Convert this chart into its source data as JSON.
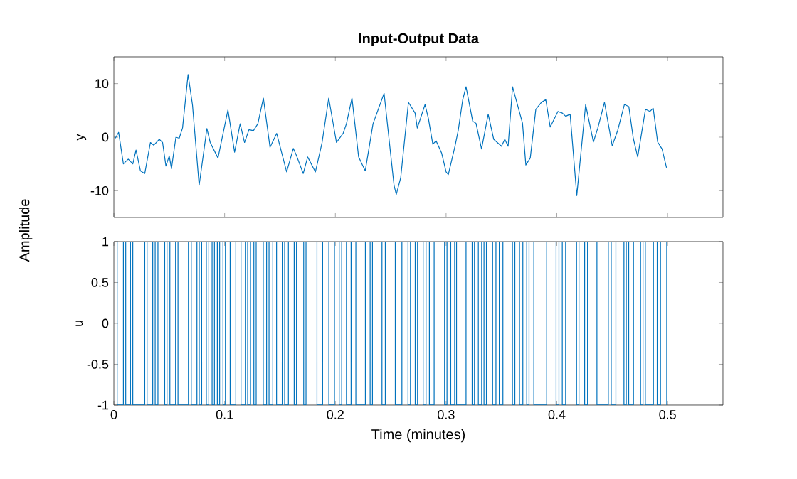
{
  "chart_data": [
    {
      "type": "line",
      "title": "Input-Output Data",
      "ylabel": "y",
      "xlim": [
        0,
        0.55
      ],
      "ylim": [
        -15,
        15
      ],
      "xticks": [
        0,
        0.1,
        0.2,
        0.3,
        0.4,
        0.5
      ],
      "yticks": [
        -10,
        0,
        10
      ],
      "tick_labels": "y",
      "grid": false,
      "marker": "none",
      "line_style": "solid",
      "series": [
        {
          "color": "#0072bd",
          "x": [
            0.0013,
            0.0043,
            0.0086,
            0.013,
            0.0171,
            0.02,
            0.024,
            0.0279,
            0.033,
            0.036,
            0.041,
            0.044,
            0.047,
            0.05,
            0.052,
            0.056,
            0.059,
            0.062,
            0.067,
            0.071,
            0.077,
            0.084,
            0.087,
            0.094,
            0.103,
            0.109,
            0.114,
            0.118,
            0.122,
            0.126,
            0.13,
            0.135,
            0.141,
            0.147,
            0.156,
            0.162,
            0.165,
            0.171,
            0.175,
            0.182,
            0.188,
            0.194,
            0.201,
            0.207,
            0.21,
            0.215,
            0.221,
            0.227,
            0.234,
            0.244,
            0.253,
            0.255,
            0.259,
            0.266,
            0.272,
            0.274,
            0.281,
            0.284,
            0.288,
            0.291,
            0.296,
            0.3,
            0.302,
            0.308,
            0.311,
            0.315,
            0.318,
            0.324,
            0.327,
            0.332,
            0.338,
            0.343,
            0.35,
            0.353,
            0.356,
            0.36,
            0.369,
            0.372,
            0.376,
            0.381,
            0.386,
            0.39,
            0.394,
            0.401,
            0.405,
            0.408,
            0.412,
            0.418,
            0.426,
            0.433,
            0.437,
            0.443,
            0.45,
            0.455,
            0.461,
            0.465,
            0.469,
            0.473,
            0.48,
            0.484,
            0.487,
            0.491,
            0.495,
            0.499
          ],
          "values": [
            -0.2,
            0.9,
            -5.0,
            -4.1,
            -5.0,
            -2.4,
            -6.3,
            -6.8,
            -1.0,
            -1.5,
            -0.4,
            -1.0,
            -5.4,
            -3.5,
            -5.9,
            0.0,
            -0.2,
            1.7,
            11.7,
            6.0,
            -9.0,
            1.6,
            -1.0,
            -3.9,
            5.1,
            -2.8,
            2.5,
            -1.0,
            1.4,
            1.2,
            2.5,
            7.3,
            -1.9,
            0.7,
            -6.5,
            -2.1,
            -3.5,
            -6.8,
            -3.7,
            -6.5,
            -1.0,
            7.3,
            -1.0,
            0.7,
            2.5,
            7.3,
            -3.7,
            -6.3,
            2.5,
            8.2,
            -9.0,
            -10.7,
            -7.6,
            6.5,
            4.5,
            1.7,
            6.1,
            3.5,
            -1.3,
            -0.7,
            -3.0,
            -6.5,
            -7.0,
            -1.7,
            1.3,
            7.0,
            9.4,
            3.0,
            2.6,
            -2.2,
            4.3,
            -0.4,
            -1.7,
            -0.4,
            -1.7,
            9.4,
            2.6,
            -5.2,
            -3.9,
            5.2,
            6.5,
            7.0,
            1.9,
            4.8,
            4.5,
            3.9,
            4.3,
            -10.9,
            6.1,
            -0.9,
            1.7,
            6.5,
            -1.6,
            1.3,
            6.1,
            5.7,
            -0.2,
            -3.7,
            5.2,
            4.8,
            5.4,
            -0.9,
            -2.2,
            -5.7
          ]
        }
      ]
    },
    {
      "type": "step",
      "ylabel": "u",
      "xlabel": "Time (minutes)",
      "xlim": [
        0,
        0.55
      ],
      "ylim": [
        -1,
        1
      ],
      "xticks": [
        0,
        0.1,
        0.2,
        0.3,
        0.4,
        0.5
      ],
      "yticks": [
        -1,
        -0.5,
        0,
        0.5,
        1
      ],
      "grid": false,
      "marker": "none",
      "line_style": "solid",
      "annotations": [
        "Amplitude"
      ],
      "series": [
        {
          "color": "#0072bd",
          "x": [
            0,
            0.003,
            0.0086,
            0.0107,
            0.015,
            0.0171,
            0.0279,
            0.03,
            0.0351,
            0.0373,
            0.0398,
            0.0459,
            0.048,
            0.0506,
            0.0557,
            0.0579,
            0.0673,
            0.0699,
            0.075,
            0.0771,
            0.0793,
            0.0835,
            0.0857,
            0.0887,
            0.0908,
            0.0934,
            0.0955,
            0.0985,
            0.1007,
            0.105,
            0.1101,
            0.1148,
            0.1187,
            0.1208,
            0.1234,
            0.1264,
            0.1285,
            0.1349,
            0.1379,
            0.1401,
            0.1435,
            0.1469,
            0.152,
            0.1542,
            0.1576,
            0.1628,
            0.1649,
            0.1714,
            0.1735,
            0.1834,
            0.1885,
            0.1941,
            0.1992,
            0.2035,
            0.2057,
            0.21,
            0.2142,
            0.2185,
            0.2271,
            0.2314,
            0.2335,
            0.2421,
            0.2451,
            0.2541,
            0.2601,
            0.2656,
            0.2678,
            0.2721,
            0.2742,
            0.2793,
            0.2819,
            0.2849,
            0.2892,
            0.2986,
            0.3008,
            0.3042,
            0.3077,
            0.3094,
            0.318,
            0.3235,
            0.3256,
            0.3291,
            0.3321,
            0.3342,
            0.3364,
            0.342,
            0.345,
            0.348,
            0.3513,
            0.3599,
            0.3621,
            0.3663,
            0.3693,
            0.3728,
            0.3749,
            0.3792,
            0.3908,
            0.3993,
            0.4019,
            0.4049,
            0.4079,
            0.4178,
            0.42,
            0.4251,
            0.4277,
            0.4362,
            0.4465,
            0.4491,
            0.4533,
            0.4606,
            0.4627,
            0.4649,
            0.4692,
            0.4756,
            0.4778,
            0.4799,
            0.4872,
            0.4906,
            0.4936,
            0.4992
          ],
          "values": [
            1,
            -1,
            1,
            -1,
            1,
            -1,
            1,
            -1,
            1,
            -1,
            1,
            -1,
            1,
            -1,
            1,
            -1,
            1,
            -1,
            1,
            -1,
            1,
            -1,
            1,
            -1,
            1,
            -1,
            1,
            -1,
            1,
            -1,
            1,
            -1,
            1,
            -1,
            1,
            -1,
            1,
            -1,
            1,
            -1,
            1,
            -1,
            1,
            -1,
            1,
            -1,
            1,
            -1,
            1,
            -1,
            1,
            -1,
            1,
            -1,
            1,
            -1,
            1,
            -1,
            1,
            -1,
            1,
            -1,
            1,
            -1,
            1,
            -1,
            1,
            -1,
            1,
            -1,
            1,
            -1,
            1,
            -1,
            1,
            -1,
            1,
            -1,
            1,
            -1,
            1,
            -1,
            1,
            -1,
            1,
            -1,
            1,
            -1,
            1,
            -1,
            1,
            -1,
            1,
            -1,
            1,
            -1,
            1,
            -1,
            1,
            -1,
            1,
            -1,
            1,
            -1,
            1,
            -1,
            1,
            -1,
            1,
            -1,
            1,
            -1,
            1,
            -1,
            1,
            -1,
            1,
            -1,
            1,
            -1
          ]
        }
      ]
    }
  ]
}
